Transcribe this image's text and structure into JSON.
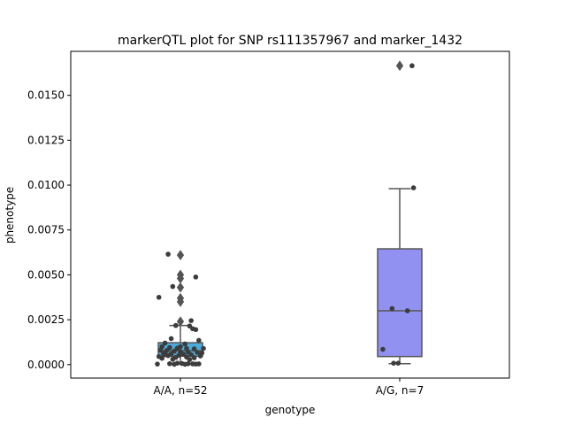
{
  "chart_data": {
    "type": "box",
    "title": "markerQTL plot for SNP rs111357967 and marker_1432",
    "xlabel": "genotype",
    "ylabel": "phenotype",
    "ylim": [
      -0.00075,
      0.01745
    ],
    "yticks": [
      "0.0000",
      "0.0025",
      "0.0050",
      "0.0075",
      "0.0100",
      "0.0125",
      "0.0150"
    ],
    "yticks_values": [
      0,
      0.0025,
      0.005,
      0.0075,
      0.01,
      0.0125,
      0.015
    ],
    "grid": false,
    "categories": [
      "A/A, n=52",
      "A/G, n=7"
    ],
    "boxes": [
      {
        "category": "A/A, n=52",
        "color": "#4bacdc",
        "q1": 0.00047,
        "median": 0.00077,
        "q3": 0.00122,
        "whisker_low": 3e-05,
        "whisker_high": 0.00218,
        "outliers": [
          0.0061,
          0.005,
          0.0048,
          0.0043,
          0.0037,
          0.0035,
          0.0024
        ]
      },
      {
        "category": "A/G, n=7",
        "color": "#9191f2",
        "q1": 0.00045,
        "median": 0.003,
        "q3": 0.00645,
        "whisker_low": 5e-05,
        "whisker_high": 0.0098,
        "outliers": [
          0.01665
        ]
      }
    ],
    "points": [
      {
        "category": 0,
        "jitter": -0.08,
        "y": 0.00615
      },
      {
        "category": 0,
        "jitter": 0.1,
        "y": 0.00488
      },
      {
        "category": 0,
        "jitter": -0.05,
        "y": 0.00435
      },
      {
        "category": 0,
        "jitter": -0.14,
        "y": 0.00375
      },
      {
        "category": 0,
        "jitter": 0.07,
        "y": 0.00245
      },
      {
        "category": 0,
        "jitter": 0.06,
        "y": 0.00215
      },
      {
        "category": 0,
        "jitter": -0.03,
        "y": 0.00218
      },
      {
        "category": 0,
        "jitter": 0.08,
        "y": 0.002
      },
      {
        "category": 0,
        "jitter": 0.1,
        "y": 0.00195
      },
      {
        "category": 0,
        "jitter": -0.06,
        "y": 0.00145
      },
      {
        "category": 0,
        "jitter": 0.12,
        "y": 0.00135
      },
      {
        "category": 0,
        "jitter": -0.1,
        "y": 0.0012
      },
      {
        "category": 0,
        "jitter": 0.03,
        "y": 0.00115
      },
      {
        "category": 0,
        "jitter": -0.12,
        "y": 0.001
      },
      {
        "category": 0,
        "jitter": -0.07,
        "y": 0.00095
      },
      {
        "category": 0,
        "jitter": -0.02,
        "y": 0.00092
      },
      {
        "category": 0,
        "jitter": 0.04,
        "y": 0.0009
      },
      {
        "category": 0,
        "jitter": 0.09,
        "y": 0.00088
      },
      {
        "category": 0,
        "jitter": -0.13,
        "y": 0.0008
      },
      {
        "category": 0,
        "jitter": -0.09,
        "y": 0.00078
      },
      {
        "category": 0,
        "jitter": -0.04,
        "y": 0.00075
      },
      {
        "category": 0,
        "jitter": 0.0,
        "y": 0.00072
      },
      {
        "category": 0,
        "jitter": 0.05,
        "y": 0.0007
      },
      {
        "category": 0,
        "jitter": 0.11,
        "y": 0.00068
      },
      {
        "category": 0,
        "jitter": 0.14,
        "y": 0.00065
      },
      {
        "category": 0,
        "jitter": -0.11,
        "y": 0.00062
      },
      {
        "category": 0,
        "jitter": -0.06,
        "y": 0.0006
      },
      {
        "category": 0,
        "jitter": 0.02,
        "y": 0.00058
      },
      {
        "category": 0,
        "jitter": 0.07,
        "y": 0.00055
      },
      {
        "category": 0,
        "jitter": -0.01,
        "y": 0.00052
      },
      {
        "category": 0,
        "jitter": -0.08,
        "y": 0.0005
      },
      {
        "category": 0,
        "jitter": 0.13,
        "y": 0.00048
      },
      {
        "category": 0,
        "jitter": -0.14,
        "y": 0.00045
      },
      {
        "category": 0,
        "jitter": 0.04,
        "y": 0.00042
      },
      {
        "category": 0,
        "jitter": -0.03,
        "y": 0.0004
      },
      {
        "category": 0,
        "jitter": 0.09,
        "y": 0.00038
      },
      {
        "category": 0,
        "jitter": -0.12,
        "y": 0.00035
      },
      {
        "category": 0,
        "jitter": -0.05,
        "y": 0.0003
      },
      {
        "category": 0,
        "jitter": -0.02,
        "y": 8e-05
      },
      {
        "category": 0,
        "jitter": 0.01,
        "y": 6e-05
      },
      {
        "category": 0,
        "jitter": 0.05,
        "y": 5e-05
      },
      {
        "category": 0,
        "jitter": 0.08,
        "y": 4e-05
      },
      {
        "category": 0,
        "jitter": 0.12,
        "y": 4e-05
      },
      {
        "category": 0,
        "jitter": -0.07,
        "y": 5e-05
      },
      {
        "category": 0,
        "jitter": -0.15,
        "y": 3e-05
      },
      {
        "category": 0,
        "jitter": 0.1,
        "y": 3e-05
      },
      {
        "category": 0,
        "jitter": 0.03,
        "y": 2e-05
      },
      {
        "category": 0,
        "jitter": -0.04,
        "y": 2e-05
      },
      {
        "category": 0,
        "jitter": 0.15,
        "y": 0.0009
      },
      {
        "category": 0,
        "jitter": -0.1,
        "y": 0.00055
      },
      {
        "category": 0,
        "jitter": 0.0,
        "y": 0.001
      },
      {
        "category": 0,
        "jitter": 0.06,
        "y": 0.00028
      },
      {
        "category": 1,
        "jitter": 0.08,
        "y": 0.01665
      },
      {
        "category": 1,
        "jitter": 0.09,
        "y": 0.00985
      },
      {
        "category": 1,
        "jitter": -0.05,
        "y": 0.00312
      },
      {
        "category": 1,
        "jitter": 0.05,
        "y": 0.003
      },
      {
        "category": 1,
        "jitter": -0.11,
        "y": 0.00085
      },
      {
        "category": 1,
        "jitter": -0.04,
        "y": 8e-05
      },
      {
        "category": 1,
        "jitter": -0.01,
        "y": 8e-05
      }
    ],
    "legend": "none"
  }
}
